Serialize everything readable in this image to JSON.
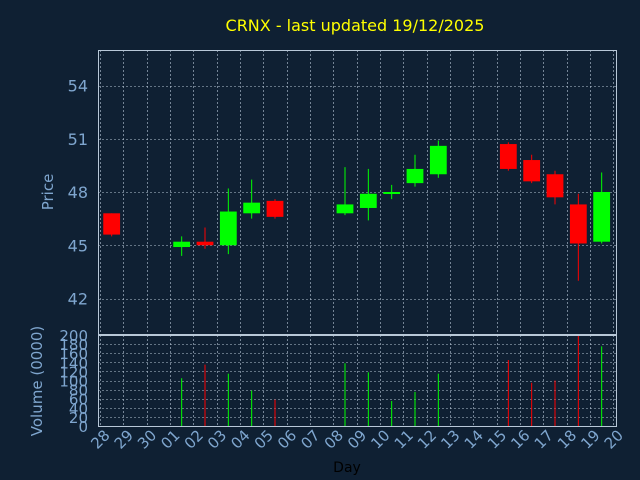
{
  "chart_data": {
    "type": "candlestick",
    "title": "CRNX - last updated 19/12/2025",
    "price_axis": {
      "label": "Price",
      "ylim": [
        40,
        56
      ],
      "ticks": [
        42,
        45,
        48,
        51,
        54
      ]
    },
    "volume_axis": {
      "label": "Volume (0000)",
      "ylim": [
        0,
        200
      ],
      "ticks": [
        0,
        20,
        40,
        60,
        80,
        100,
        120,
        140,
        160,
        180,
        200
      ]
    },
    "xlabel": "Day",
    "x_ticks": [
      "28",
      "29",
      "30",
      "01",
      "02",
      "03",
      "04",
      "05",
      "06",
      "07",
      "08",
      "09",
      "10",
      "11",
      "12",
      "13",
      "14",
      "15",
      "16",
      "17",
      "18",
      "19",
      "20"
    ],
    "grid": true,
    "candles": [
      {
        "day": "28",
        "open": 46.8,
        "close": 45.6,
        "high": 46.8,
        "low": 45.5,
        "volume": 0
      },
      {
        "day": "01",
        "open": 44.9,
        "close": 45.2,
        "high": 45.5,
        "low": 44.4,
        "volume": 105
      },
      {
        "day": "02",
        "open": 45.2,
        "close": 45.0,
        "high": 46.0,
        "low": 44.8,
        "volume": 135
      },
      {
        "day": "03",
        "open": 45.0,
        "close": 46.9,
        "high": 48.2,
        "low": 44.5,
        "volume": 115
      },
      {
        "day": "04",
        "open": 46.8,
        "close": 47.4,
        "high": 48.7,
        "low": 46.5,
        "volume": 78
      },
      {
        "day": "05",
        "open": 47.5,
        "close": 46.6,
        "high": 47.6,
        "low": 46.5,
        "volume": 58
      },
      {
        "day": "08",
        "open": 46.8,
        "close": 47.3,
        "high": 49.4,
        "low": 46.7,
        "volume": 138
      },
      {
        "day": "09",
        "open": 47.1,
        "close": 47.9,
        "high": 49.3,
        "low": 46.4,
        "volume": 118
      },
      {
        "day": "10",
        "open": 47.9,
        "close": 48.0,
        "high": 48.4,
        "low": 47.6,
        "volume": 55
      },
      {
        "day": "11",
        "open": 48.5,
        "close": 49.3,
        "high": 50.1,
        "low": 48.3,
        "volume": 75
      },
      {
        "day": "12",
        "open": 49.0,
        "close": 50.6,
        "high": 50.9,
        "low": 48.8,
        "volume": 115
      },
      {
        "day": "15",
        "open": 50.7,
        "close": 49.3,
        "high": 50.8,
        "low": 49.2,
        "volume": 145
      },
      {
        "day": "16",
        "open": 49.8,
        "close": 48.6,
        "high": 50.1,
        "low": 48.5,
        "volume": 95
      },
      {
        "day": "17",
        "open": 49.0,
        "close": 47.7,
        "high": 49.2,
        "low": 47.3,
        "volume": 100
      },
      {
        "day": "18",
        "open": 47.3,
        "close": 45.1,
        "high": 47.9,
        "low": 43.0,
        "volume": 200
      },
      {
        "day": "19",
        "open": 45.2,
        "close": 48.0,
        "high": 49.1,
        "low": 45.1,
        "volume": 175
      }
    ],
    "colors": {
      "up": "#00ff00",
      "down": "#ff0000",
      "title": "#ffff00",
      "axis_text": "#7fa6cf",
      "grid": "#b8c8d8",
      "background": "#0f2033"
    }
  }
}
